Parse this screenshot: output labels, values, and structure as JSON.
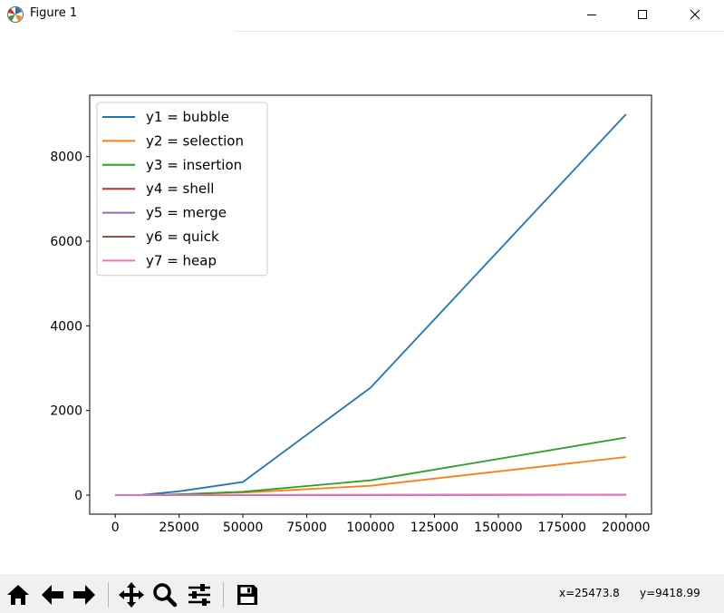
{
  "window": {
    "title": "Figure 1",
    "buttons": [
      "minimize-icon",
      "maximize-icon",
      "close-icon"
    ]
  },
  "toolbar": {
    "tools": [
      "home-icon",
      "back-icon",
      "forward-icon",
      "pan-icon",
      "zoom-icon",
      "configure-subplots-icon",
      "save-icon"
    ],
    "coord_x": "x=25473.8",
    "coord_y": "y=9418.99"
  },
  "chart_data": {
    "type": "line",
    "title": "",
    "xlabel": "",
    "ylabel": "",
    "x": [
      0,
      10000,
      25000,
      50000,
      100000,
      200000
    ],
    "xlim": [
      -10000,
      210000
    ],
    "ylim": [
      -450,
      9450
    ],
    "xticks": [
      0,
      25000,
      50000,
      75000,
      100000,
      125000,
      150000,
      175000,
      200000
    ],
    "yticks": [
      0,
      2000,
      4000,
      6000,
      8000
    ],
    "grid": false,
    "legend_position": "upper-left",
    "series": [
      {
        "name": "y1 = bubble",
        "color": "#1f77b4",
        "values": [
          0,
          2,
          90,
          310,
          2540,
          9000
        ]
      },
      {
        "name": "y2 = selection",
        "color": "#ff7f0e",
        "values": [
          0,
          1,
          20,
          60,
          220,
          900
        ]
      },
      {
        "name": "y3 = insertion",
        "color": "#2ca02c",
        "values": [
          0,
          1,
          20,
          80,
          350,
          1360
        ]
      },
      {
        "name": "y4 = shell",
        "color": "#d62728",
        "values": [
          0,
          0,
          1,
          2,
          5,
          10
        ]
      },
      {
        "name": "y5 = merge",
        "color": "#9467bd",
        "values": [
          0,
          0,
          1,
          2,
          4,
          9
        ]
      },
      {
        "name": "y6 = quick",
        "color": "#8c564b",
        "values": [
          0,
          0,
          1,
          1,
          3,
          6
        ]
      },
      {
        "name": "y7 = heap",
        "color": "#e377c2",
        "values": [
          0,
          0,
          1,
          2,
          5,
          11
        ]
      }
    ]
  }
}
